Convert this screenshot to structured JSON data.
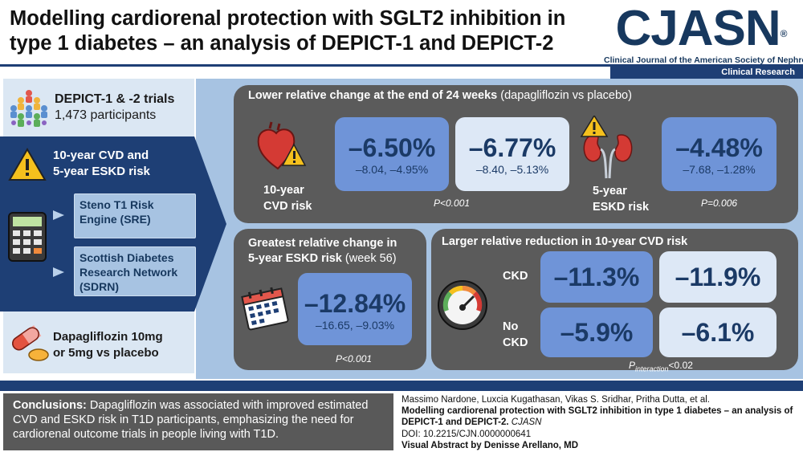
{
  "header": {
    "title_line1": "Modelling cardiorenal protection with SGLT2 inhibition in",
    "title_line2": "type 1 diabetes – an analysis of DEPICT-1 and DEPICT-2",
    "logo": "CJASN",
    "logo_mark": "®",
    "journal_name": "Clinical Journal of the American Society of Nephrology",
    "section": "Clinical Research"
  },
  "left": {
    "trials_title": "DEPICT-1 & -2 trials",
    "participants": "1,473 participants",
    "risk_title_line1": "10-year CVD and",
    "risk_title_line2": "5-year ESKD risk",
    "model1_line1": "Steno T1 Risk",
    "model1_line2": "Engine (SRE)",
    "model2_line1": "Scottish Diabetes",
    "model2_line2": "Research Network",
    "model2_line3": "(SDRN)",
    "drug_line1": "Dapagliflozin 10mg",
    "drug_line2": "or 5mg vs placebo"
  },
  "panel_top": {
    "title_bold": "Lower relative change at the end of 24 weeks",
    "title_rest": " (dapagliflozin vs placebo)",
    "cvd_label_line1": "10-year",
    "cvd_label_line2": "CVD risk",
    "cvd_value1": "–6.50%",
    "cvd_ci1": "–8.04, –4.95%",
    "cvd_value2": "–6.77%",
    "cvd_ci2": "–8.40, –5.13%",
    "cvd_p": "P<0.001",
    "eskd_label_line1": "5-year",
    "eskd_label_line2": "ESKD risk",
    "eskd_value": "–4.48%",
    "eskd_ci": "–7.68, –1.28%",
    "eskd_p": "P=0.006"
  },
  "panel_eskd": {
    "title_line1": "Greatest relative change in",
    "title_line2_bold": "5-year ESKD risk",
    "title_line2_rest": " (week 56)",
    "value": "–12.84%",
    "ci": "–16.65, –9.03%",
    "p": "P<0.001"
  },
  "panel_ckd": {
    "title": "Larger relative reduction in 10-year CVD risk",
    "ckd_label": "CKD",
    "no_ckd_label_line1": "No",
    "no_ckd_label_line2": "CKD",
    "ckd_value1": "–11.3%",
    "ckd_value2": "–11.9%",
    "nockd_value1": "–5.9%",
    "nockd_value2": "–6.1%",
    "p_prefix": "P",
    "p_sub": "interaction",
    "p_suffix": "<0.02"
  },
  "conclusion": {
    "label": "Conclusions:",
    "text": " Dapagliflozin was associated with improved estimated CVD and ESKD risk in T1D participants, emphasizing the need for cardiorenal outcome trials in people living with T1D."
  },
  "citation": {
    "authors": "Massimo Nardone, Luxcia Kugathasan, Vikas S. Sridhar, Pritha Dutta, et al.",
    "title": "Modelling cardiorenal protection with SGLT2 inhibition in type 1 diabetes – an analysis of DEPICT-1 and DEPICT-2.",
    "journal": "CJASN",
    "doi": "DOI: 10.2215/CJN.0000000641",
    "credit": "Visual Abstract by Denisse Arellano, MD"
  },
  "colors": {
    "navy": "#1e3f75",
    "panel_gray": "#5b5b5b",
    "value_blue": "#6f94d8",
    "value_light": "#dde8f6",
    "bg_blue": "#a7c3e2"
  }
}
